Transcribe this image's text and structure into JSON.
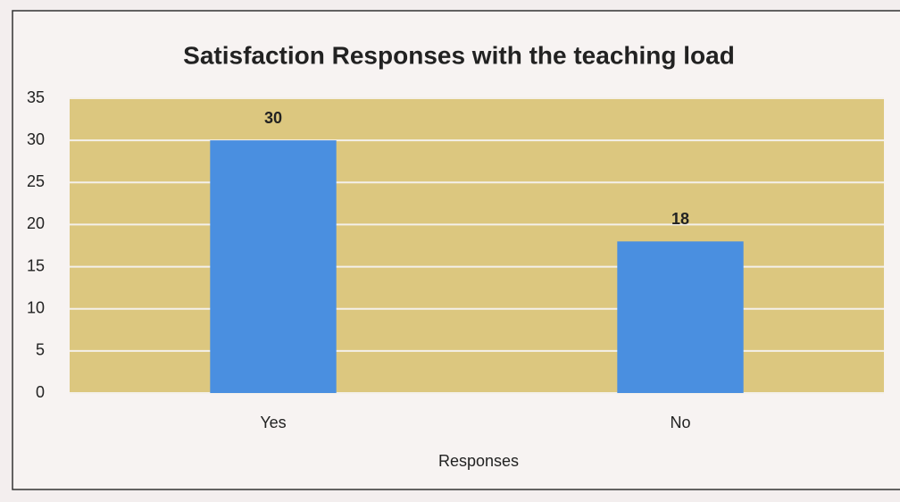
{
  "chart_data": {
    "type": "bar",
    "title": "Satisfaction Responses with the teaching load",
    "categories": [
      "Yes",
      "No"
    ],
    "values": [
      30,
      18
    ],
    "color": "#4a8fe0",
    "xlabel": "Responses",
    "ylim": [
      0,
      35
    ],
    "yticks": [
      0,
      5,
      10,
      15,
      20,
      25,
      30,
      35
    ],
    "grid": true
  }
}
